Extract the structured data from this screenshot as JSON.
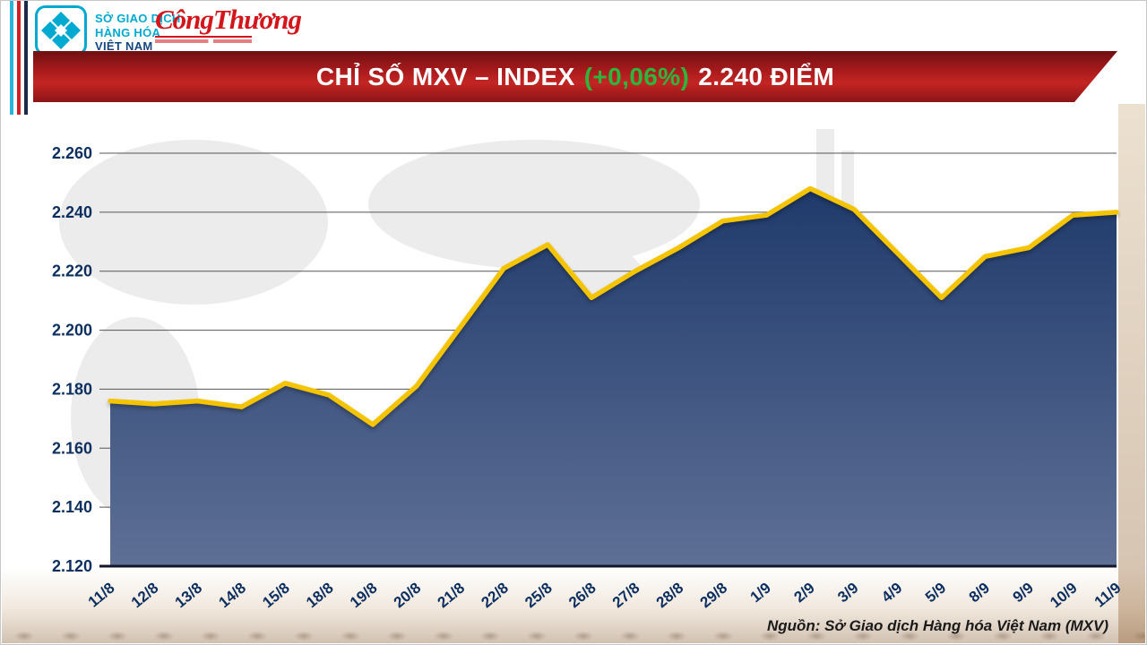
{
  "header": {
    "mxv_logo": {
      "line1": "SỞ GIAO DỊCH",
      "line2": "HÀNG HÓA",
      "line3": "VIỆT NAM"
    },
    "congthuong_logo": {
      "wordmark": "CôngThương"
    }
  },
  "banner": {
    "title_prefix": "CHỈ SỐ MXV – INDEX",
    "title_change": "(+0,06%)",
    "title_suffix": "2.240 ĐIỂM"
  },
  "chart_data": {
    "type": "area",
    "title": "CHỈ SỐ MXV – INDEX (+0,06%) 2.240 ĐIỂM",
    "categories": [
      "11/8",
      "12/8",
      "13/8",
      "14/8",
      "15/8",
      "18/8",
      "19/8",
      "20/8",
      "21/8",
      "22/8",
      "25/8",
      "26/8",
      "27/8",
      "28/8",
      "29/8",
      "1/9",
      "2/9",
      "3/9",
      "4/9",
      "5/9",
      "8/9",
      "9/9",
      "10/9",
      "11/9"
    ],
    "values": [
      2176,
      2175,
      2176,
      2174,
      2182,
      2178,
      2168,
      2181,
      2201,
      2221,
      2229,
      2211,
      2220,
      2228,
      2237,
      2239,
      2248,
      2241,
      2226,
      2211,
      2225,
      2228,
      2239,
      2240
    ],
    "xlabel": "",
    "ylabel": "",
    "ylim": [
      2120,
      2260
    ],
    "ytick_step": 20,
    "grid": true,
    "legend": "none",
    "line_color": "#f5c400",
    "area_top_color": "#1f3a6b",
    "area_bottom_color": "#5f7096",
    "label_color": "#0d2f5f"
  },
  "footer": {
    "source": "Nguồn: Sở Giao dịch Hàng hóa Việt Nam (MXV)"
  },
  "colors": {
    "banner_green": "#2eb53c",
    "banner_red": "#b01c1e",
    "accent_cyan": "#29b5d8",
    "accent_red": "#d21f26",
    "accent_navy": "#1b2a4a"
  }
}
